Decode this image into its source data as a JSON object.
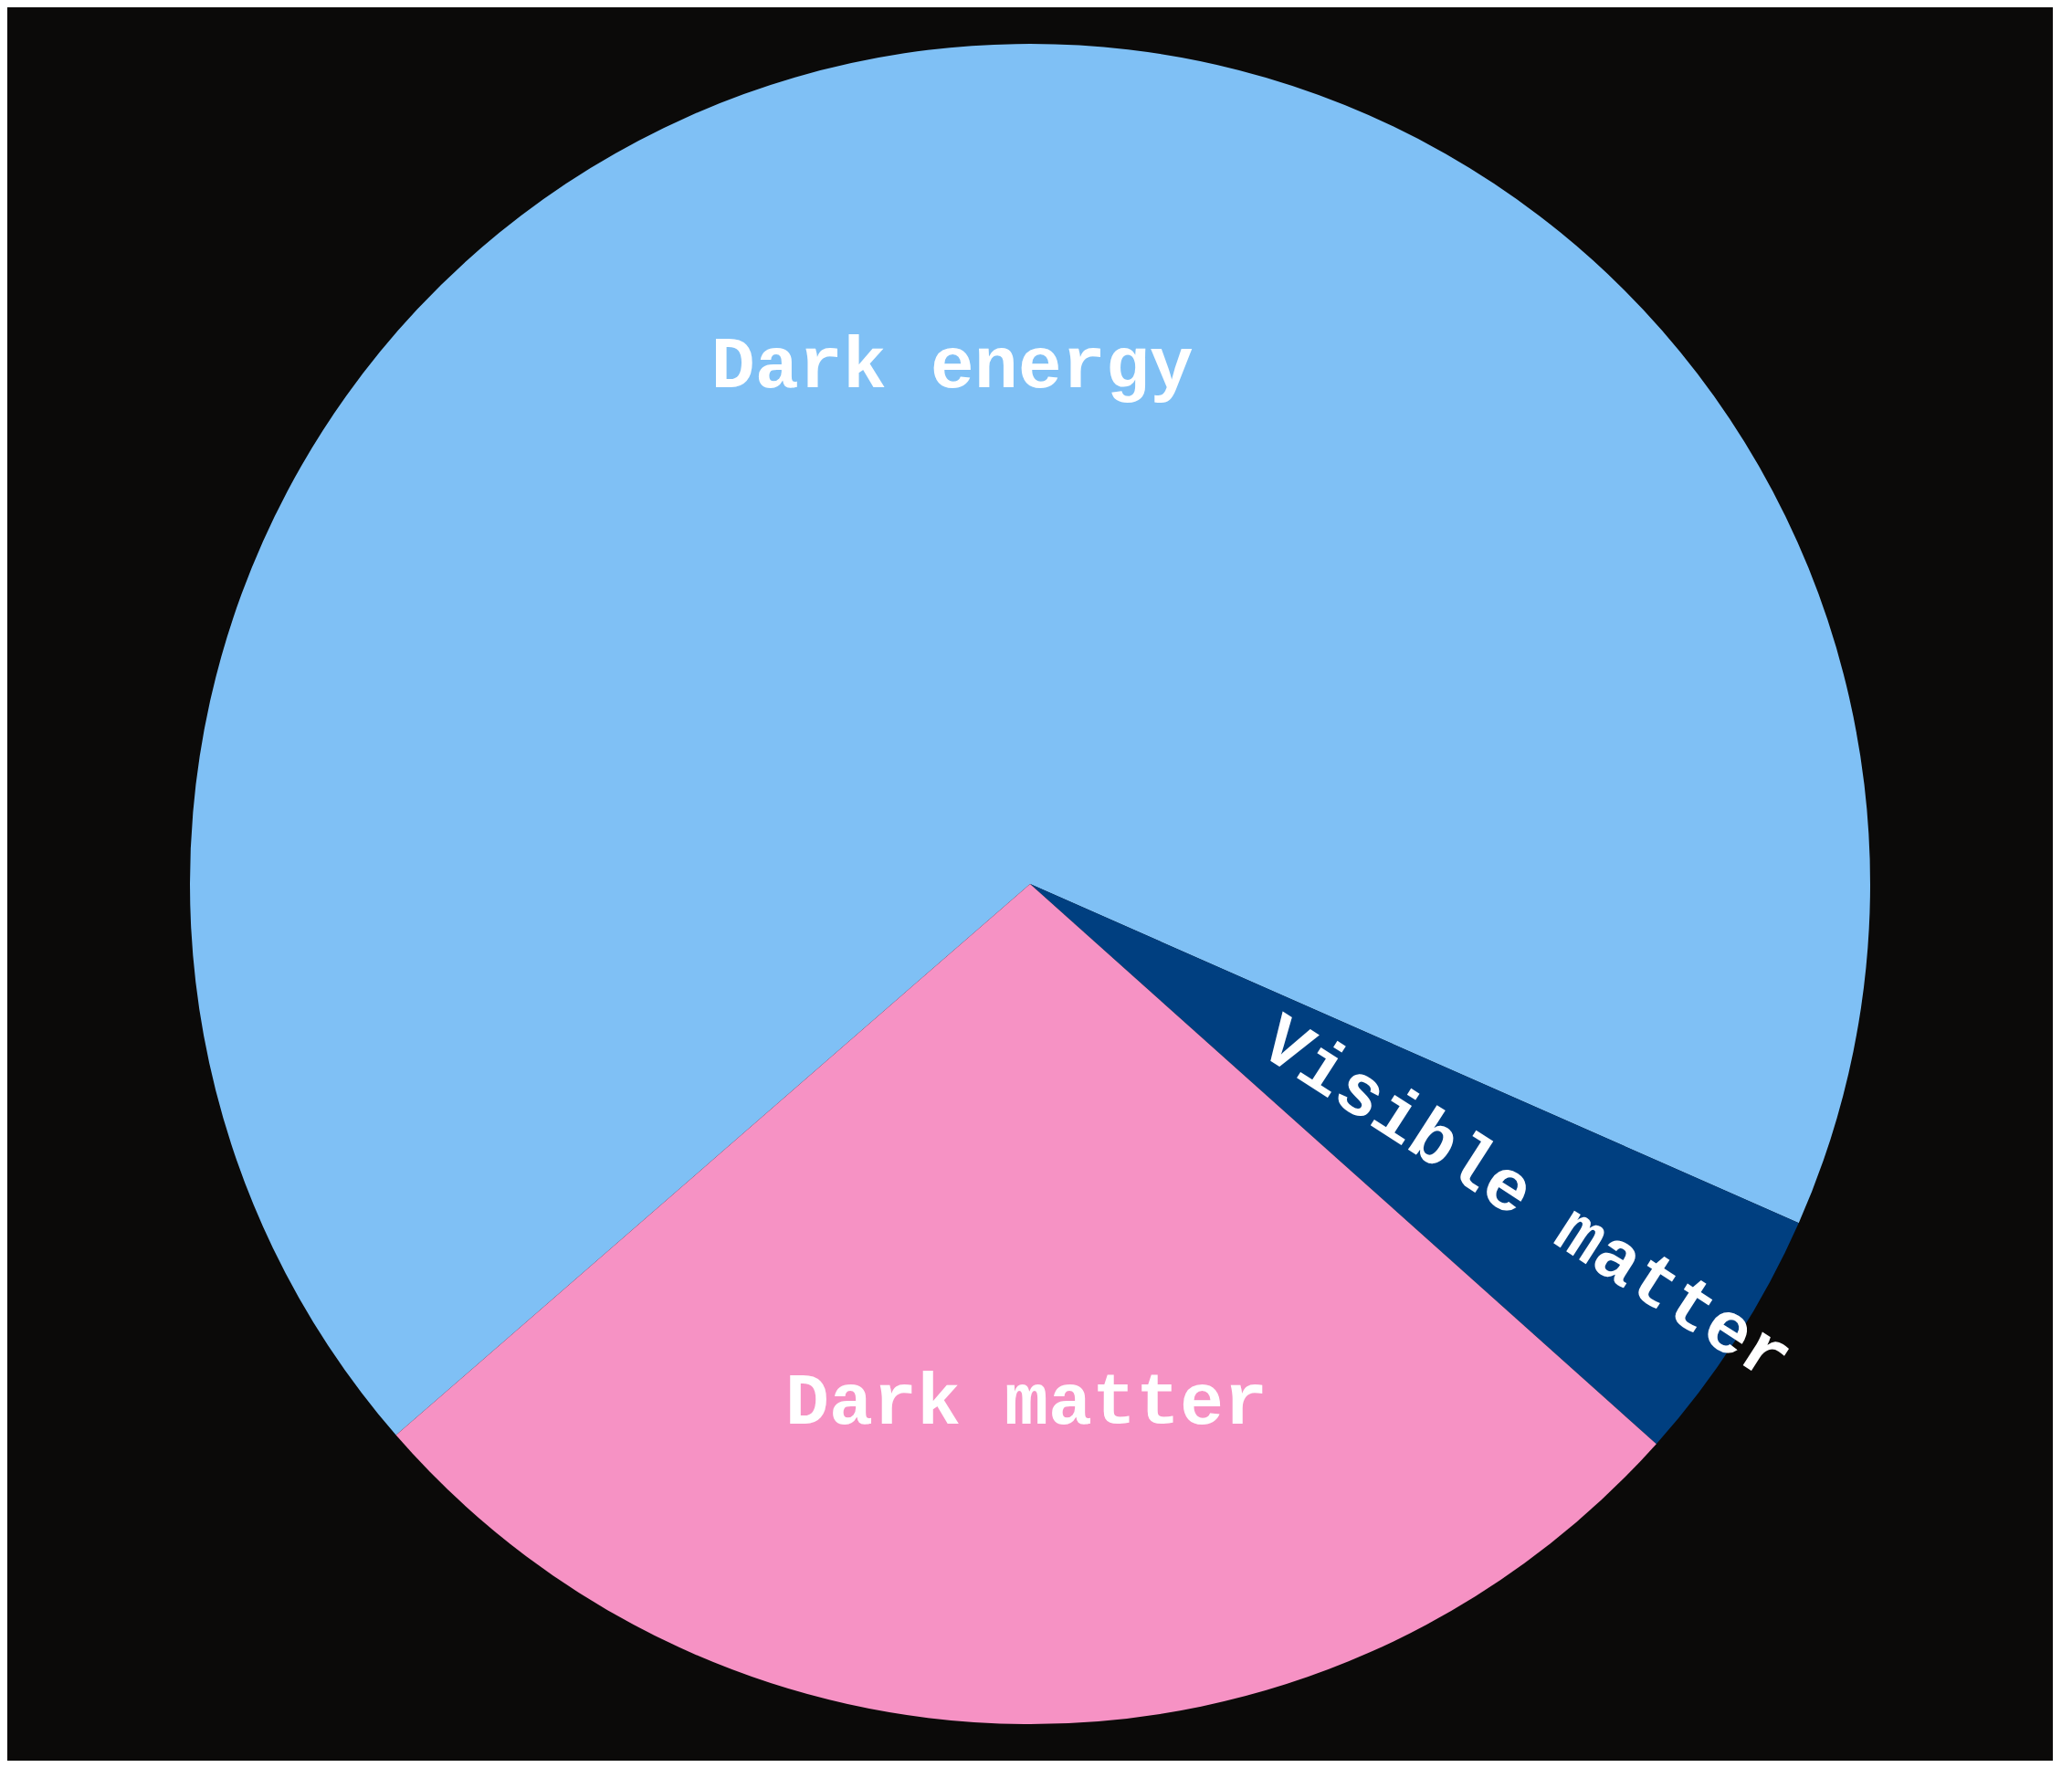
{
  "chart_data": {
    "type": "pie",
    "categories": [
      "Dark energy",
      "Visible matter",
      "Dark matter"
    ],
    "values": [
      68,
      5,
      27
    ],
    "colors": [
      "#7fc0f5",
      "#003f80",
      "#f692c4"
    ],
    "legend": false
  }
}
